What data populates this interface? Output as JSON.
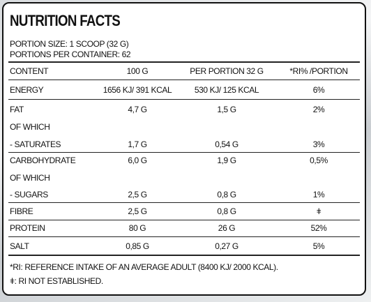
{
  "header": {
    "title": "NUTRITION FACTS",
    "portion_size": "PORTION SIZE: 1 SCOOP (32 G)",
    "portions_per_container": "PORTIONS PER CONTAINER: 62"
  },
  "table": {
    "columns": [
      "CONTENT",
      "100 G",
      "PER PORTION  32 G",
      "*RI% /PORTION"
    ],
    "rows": [
      [
        "ENERGY",
        "1656 KJ/ 391 KCAL",
        "530 KJ/ 125 KCAL",
        "6%"
      ],
      [
        "FAT",
        "4,7 G",
        "1,5 G",
        "2%"
      ],
      [
        "OF WHICH"
      ],
      [
        "- SATURATES",
        "1,7 G",
        "0,54 G",
        "3%"
      ],
      [
        "CARBOHYDRATE",
        "6,0 G",
        "1,9 G",
        "0,5%"
      ],
      [
        "OF WHICH"
      ],
      [
        "- SUGARS",
        "2,5 G",
        "0,8 G",
        "1%"
      ],
      [
        "FIBRE",
        "2,5 G",
        "0,8 G",
        "ǂ"
      ],
      [
        "PROTEIN",
        "80 G",
        "26  G",
        "52%"
      ],
      [
        "SALT",
        "0,85 G",
        "0,27 G",
        "5%"
      ]
    ]
  },
  "footnotes": [
    "*RI: REFERENCE INTAKE OF AN AVERAGE ADULT (8400 KJ/ 2000 KCAL).",
    "ǂ: RI NOT ESTABLISHED."
  ]
}
